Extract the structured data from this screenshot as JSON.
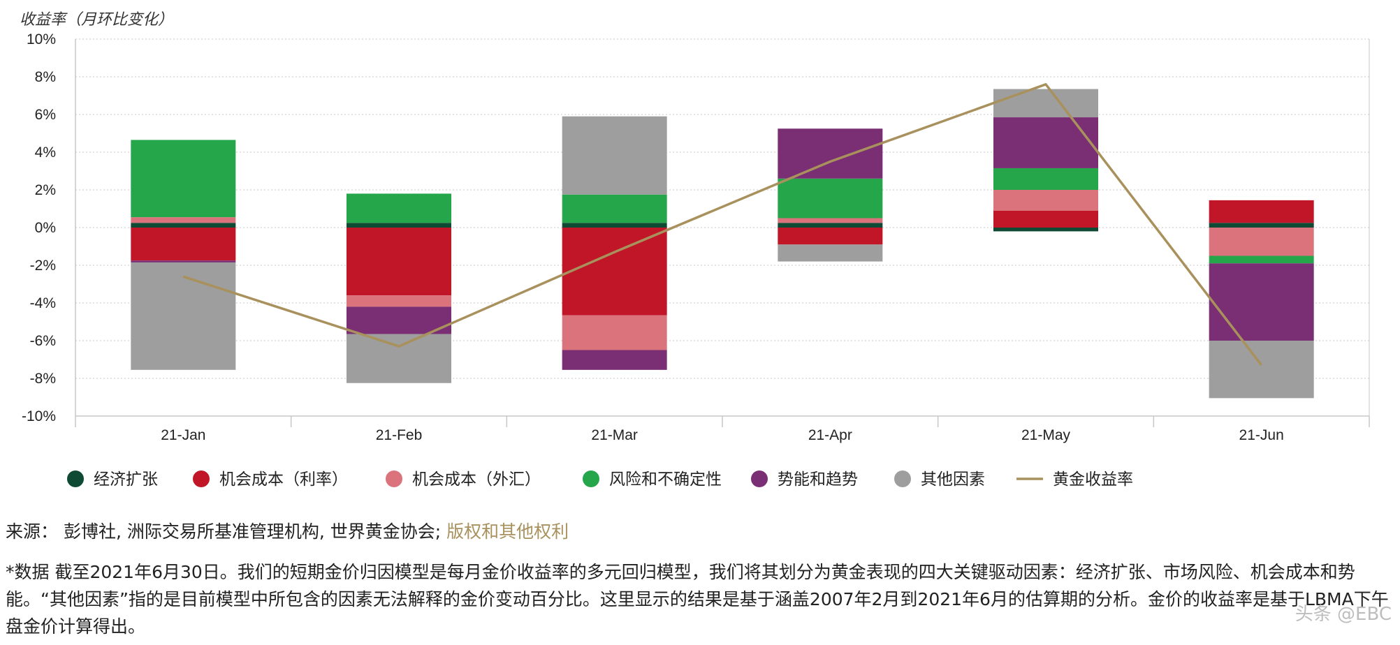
{
  "colors": {
    "axis": "#c7c7c7",
    "grid": "#c9c9c9",
    "text": "#222222",
    "link": "#a8915c"
  },
  "chart_data": {
    "type": "bar",
    "stacked": true,
    "y_title": "收益率（月环比变化）",
    "ylim": [
      -10,
      10
    ],
    "y_ticks": [
      10,
      8,
      6,
      4,
      2,
      0,
      -2,
      -4,
      -6,
      -8,
      -10
    ],
    "y_tick_labels": [
      "10%",
      "8%",
      "6%",
      "4%",
      "2%",
      "0%",
      "-2%",
      "-4%",
      "-6%",
      "-8%",
      "-10%"
    ],
    "categories": [
      "21-Jan",
      "21-Feb",
      "21-Mar",
      "21-Apr",
      "21-May",
      "21-Jun"
    ],
    "grid": "horizontal dotted",
    "legend_position": "bottom",
    "series": [
      {
        "name": "经济扩张",
        "color": "#0f4a34",
        "values": [
          0.25,
          0.25,
          0.25,
          0.25,
          -0.2,
          0.25
        ]
      },
      {
        "name": "机会成本（利率）",
        "color": "#c01628",
        "values": [
          -1.75,
          -3.6,
          -4.65,
          -0.9,
          0.9,
          1.2
        ]
      },
      {
        "name": "机会成本（外汇）",
        "color": "#db737c",
        "values": [
          0.3,
          -0.6,
          -1.85,
          0.25,
          1.1,
          -1.5
        ]
      },
      {
        "name": "风险和不确定性",
        "color": "#25a64a",
        "values": [
          4.1,
          1.55,
          1.5,
          2.1,
          1.15,
          -0.4
        ]
      },
      {
        "name": "势能和趋势",
        "color": "#7a2e74",
        "values": [
          -0.1,
          -1.45,
          -1.05,
          2.65,
          2.7,
          -4.1
        ]
      },
      {
        "name": "其他因素",
        "color": "#9e9e9e",
        "values": [
          -5.7,
          -2.6,
          4.15,
          -0.9,
          1.5,
          -3.05
        ]
      }
    ],
    "line": {
      "name": "黄金收益率",
      "color": "#a8915c",
      "values": [
        -2.6,
        -6.3,
        -1.3,
        3.5,
        7.6,
        -7.3
      ]
    }
  },
  "source_label": "来源：  彭博社, 洲际交易所基准管理机构, 世界黄金协会; ",
  "source_link": "版权和其他权利",
  "note": "*数据 截至2021年6月30日。我们的短期金价归因模型是每月金价收益率的多元回归模型，我们将其划分为黄金表现的四大关键驱动因素：经济扩张、市场风险、机会成本和势能。“其他因素”指的是目前模型中所包含的因素无法解释的金价变动百分比。这里显示的结果是基于涵盖2007年2月到2021年6月的估算期的分析。金价的收益率是基于LBMA下午盘金价计算得出。",
  "watermark": "头条 @EBC"
}
